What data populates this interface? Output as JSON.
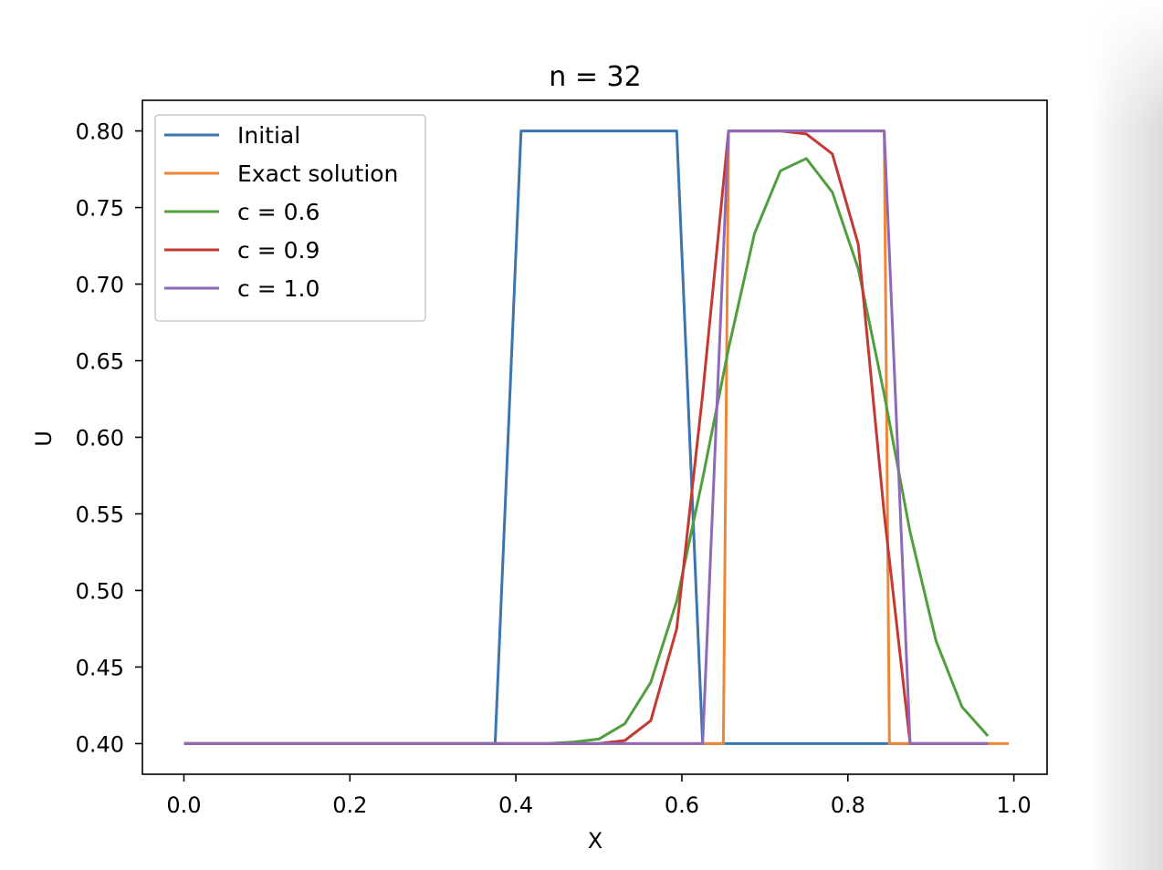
{
  "chart_data": {
    "type": "line",
    "title": "n = 32",
    "xlabel": "X",
    "ylabel": "U",
    "xlim": [
      -0.05,
      1.04
    ],
    "ylim": [
      0.38,
      0.82
    ],
    "xticks": [
      "0.0",
      "0.2",
      "0.4",
      "0.6",
      "0.8",
      "1.0"
    ],
    "yticks": [
      "0.40",
      "0.45",
      "0.50",
      "0.55",
      "0.60",
      "0.65",
      "0.70",
      "0.75",
      "0.80"
    ],
    "grid": false,
    "legend_position": "upper-left",
    "series": [
      {
        "name": "Initial",
        "color": "#3a75b0",
        "x": [
          0.0,
          0.375,
          0.40625,
          0.59375,
          0.625,
          0.65625,
          0.96875
        ],
        "y": [
          0.4,
          0.4,
          0.8,
          0.8,
          0.4,
          0.4,
          0.4
        ]
      },
      {
        "name": "Exact solution",
        "color": "#ef8636",
        "x": [
          0.0,
          0.625,
          0.65,
          0.65625,
          0.84375,
          0.85,
          0.875,
          0.99375
        ],
        "y": [
          0.4,
          0.4,
          0.4,
          0.8,
          0.8,
          0.4,
          0.4,
          0.4
        ]
      },
      {
        "name": "c = 0.6",
        "color": "#519e3e",
        "x": [
          0.0,
          0.4375,
          0.46875,
          0.5,
          0.53125,
          0.5625,
          0.59375,
          0.625,
          0.65625,
          0.6875,
          0.71875,
          0.75,
          0.78125,
          0.8125,
          0.84375,
          0.875,
          0.90625,
          0.9375,
          0.96875
        ],
        "y": [
          0.4,
          0.4,
          0.401,
          0.403,
          0.413,
          0.44,
          0.493,
          0.573,
          0.658,
          0.733,
          0.774,
          0.782,
          0.76,
          0.71,
          0.628,
          0.538,
          0.467,
          0.424,
          0.405
        ]
      },
      {
        "name": "c = 0.9",
        "color": "#c43932",
        "x": [
          0.0,
          0.5,
          0.53125,
          0.5625,
          0.59375,
          0.625,
          0.65625,
          0.6875,
          0.71875,
          0.75,
          0.78125,
          0.8125,
          0.84375,
          0.875,
          0.90625,
          0.96875
        ],
        "y": [
          0.4,
          0.4,
          0.402,
          0.415,
          0.475,
          0.628,
          0.8,
          0.8,
          0.8,
          0.798,
          0.785,
          0.726,
          0.55,
          0.4,
          0.4,
          0.4
        ]
      },
      {
        "name": "c = 1.0",
        "color": "#8d69b8",
        "x": [
          0.0,
          0.59375,
          0.625,
          0.65625,
          0.84375,
          0.875,
          0.96875
        ],
        "y": [
          0.4,
          0.4,
          0.4,
          0.8,
          0.8,
          0.4,
          0.4
        ]
      }
    ]
  }
}
